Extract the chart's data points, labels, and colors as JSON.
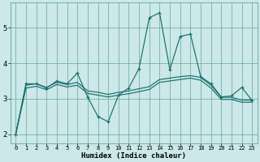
{
  "xlabel": "Humidex (Indice chaleur)",
  "background_color": "#cce8e8",
  "grid_color": "#5fa89a",
  "line_color": "#1a6e6e",
  "xlim": [
    -0.5,
    23.5
  ],
  "ylim": [
    1.75,
    5.7
  ],
  "yticks": [
    2,
    3,
    4,
    5
  ],
  "xtick_labels": [
    "0",
    "1",
    "2",
    "3",
    "4",
    "5",
    "6",
    "7",
    "8",
    "9",
    "10",
    "11",
    "12",
    "13",
    "14",
    "15",
    "16",
    "17",
    "18",
    "19",
    "20",
    "21",
    "22",
    "23"
  ],
  "series": [
    [
      2.0,
      3.42,
      3.42,
      3.3,
      3.5,
      3.42,
      3.72,
      3.05,
      2.5,
      2.35,
      3.1,
      3.3,
      3.85,
      5.28,
      5.42,
      3.82,
      4.75,
      4.82,
      3.62,
      3.42,
      3.05,
      3.08,
      3.32,
      2.95
    ],
    [
      2.0,
      3.38,
      3.42,
      3.32,
      3.46,
      3.4,
      3.46,
      3.22,
      3.18,
      3.12,
      3.18,
      3.22,
      3.28,
      3.34,
      3.54,
      3.58,
      3.62,
      3.65,
      3.6,
      3.38,
      3.04,
      3.04,
      2.96,
      2.96
    ],
    [
      2.0,
      3.3,
      3.35,
      3.25,
      3.4,
      3.33,
      3.38,
      3.15,
      3.1,
      3.05,
      3.1,
      3.14,
      3.2,
      3.26,
      3.46,
      3.5,
      3.54,
      3.58,
      3.52,
      3.3,
      2.98,
      2.98,
      2.9,
      2.9
    ]
  ]
}
